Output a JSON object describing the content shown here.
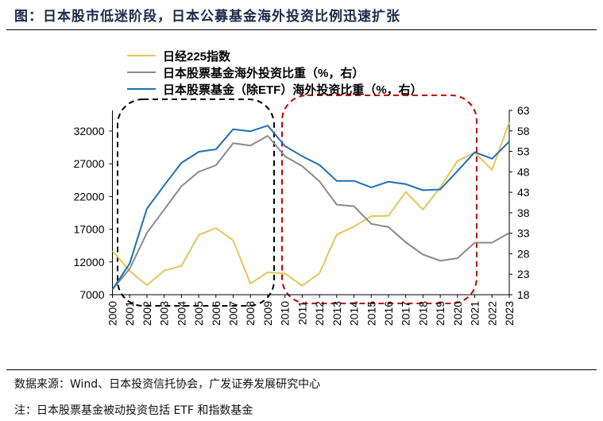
{
  "title": "图：日本股市低迷阶段，日本公募基金海外投资比例迅速扩张",
  "footer": {
    "source": "数据来源：Wind、日本投资信托协会，广发证券发展研究中心",
    "note": "注：日本股票基金被动投资包括 ETF 和指数基金"
  },
  "chart_data": {
    "type": "line",
    "x": [
      "2000",
      "2001",
      "2002",
      "2003",
      "2004",
      "2005",
      "2006",
      "2007",
      "2008",
      "2009",
      "2010",
      "2011",
      "2012",
      "2013",
      "2014",
      "2015",
      "2016",
      "2017",
      "2018",
      "2019",
      "2020",
      "2021",
      "2022",
      "2023"
    ],
    "left_axis": {
      "ylim": [
        7000,
        32000
      ],
      "ticks": [
        "7000",
        "12000",
        "17000",
        "22000",
        "27000",
        "32000"
      ]
    },
    "right_axis": {
      "ylim": [
        18,
        63
      ],
      "ticks": [
        "18",
        "23",
        "28",
        "33",
        "38",
        "43",
        "48",
        "53",
        "58",
        "63"
      ]
    },
    "series": [
      {
        "name": "日经225指数",
        "axis": "left",
        "color": "#e8c45a",
        "values": [
          13700,
          10640,
          8460,
          10680,
          11410,
          16100,
          17200,
          15290,
          8700,
          10440,
          10240,
          8370,
          10280,
          16190,
          17400,
          19000,
          19060,
          22700,
          20000,
          23390,
          27430,
          28730,
          26060,
          33350
        ]
      },
      {
        "name": "日本股票基金海外投资比重（%，右）",
        "axis": "right",
        "color": "#8a8a8a",
        "values": [
          19.3,
          24.3,
          33.1,
          38.8,
          44.5,
          48.0,
          49.6,
          55.0,
          54.4,
          56.8,
          51.8,
          49.4,
          45.7,
          40.0,
          39.6,
          35.3,
          34.5,
          30.8,
          27.8,
          26.3,
          26.9,
          30.7,
          30.7,
          33.1
        ]
      },
      {
        "name": "日本股票基金（除ETF）海外投资比重（%，右）",
        "axis": "right",
        "color": "#1f6fb2",
        "values": [
          19.3,
          25.6,
          39.0,
          44.7,
          50.2,
          52.9,
          53.5,
          58.4,
          57.9,
          59.3,
          54.3,
          51.8,
          49.7,
          45.8,
          45.8,
          44.2,
          45.6,
          45.0,
          43.5,
          43.7,
          48.2,
          52.8,
          51.2,
          55.4
        ]
      }
    ],
    "highlights": [
      {
        "from": "2001",
        "to": "2009",
        "color": "#000000",
        "style": "dashed"
      },
      {
        "from": "2010",
        "to": "2020",
        "color": "#c00000",
        "style": "dashed"
      }
    ],
    "legend": "top",
    "grid": false
  }
}
